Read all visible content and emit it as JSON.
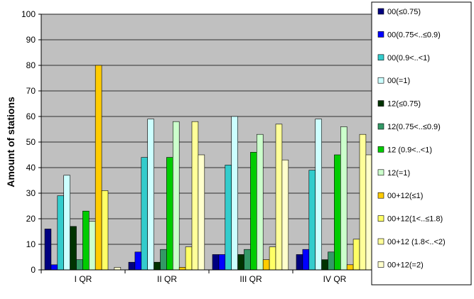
{
  "chart_data": {
    "type": "bar",
    "title": "",
    "xlabel": "",
    "ylabel": "Amount of stations",
    "ylim": [
      0,
      100
    ],
    "yticks": [
      0,
      10,
      20,
      30,
      40,
      50,
      60,
      70,
      80,
      90,
      100
    ],
    "grid": "horizontal",
    "legend_position": "right",
    "plot_background": "#c0c0c0",
    "categories": [
      "I QR",
      "II QR",
      "III QR",
      "IV QR"
    ],
    "series": [
      {
        "name": "00(≤0.75)",
        "color": "#000080",
        "values": [
          16,
          3,
          6,
          6
        ]
      },
      {
        "name": "00(0.75<..≤0.9)",
        "color": "#0000ff",
        "values": [
          2,
          7,
          6,
          8
        ]
      },
      {
        "name": "00(0.9<..<1)",
        "color": "#33cccc",
        "values": [
          29,
          44,
          41,
          39
        ]
      },
      {
        "name": "00(=1)",
        "color": "#ccffff",
        "values": [
          37,
          59,
          60,
          59
        ]
      },
      {
        "name": "12(≤0.75)",
        "color": "#003300",
        "values": [
          17,
          3,
          6,
          4
        ]
      },
      {
        "name": "12(0.75<..≤0.9)",
        "color": "#339966",
        "values": [
          4,
          8,
          8,
          7
        ]
      },
      {
        "name": "12 (0.9<..<1)",
        "color": "#00cc00",
        "values": [
          23,
          44,
          46,
          45
        ]
      },
      {
        "name": "12(=1)",
        "color": "#ccffcc",
        "values": [
          19,
          58,
          53,
          56
        ]
      },
      {
        "name": "00+12(≤1)",
        "color": "#ffcc00",
        "values": [
          80,
          1,
          4,
          2
        ]
      },
      {
        "name": "00+12(1<..≤1.8)",
        "color": "#ffff66",
        "values": [
          31,
          9,
          9,
          12
        ]
      },
      {
        "name": "00+12 (1.8<..<2)",
        "color": "#ffff99",
        "values": [
          0,
          58,
          57,
          53
        ]
      },
      {
        "name": "00+12(=2)",
        "color": "#ffffcc",
        "values": [
          1,
          45,
          43,
          45
        ]
      }
    ]
  }
}
